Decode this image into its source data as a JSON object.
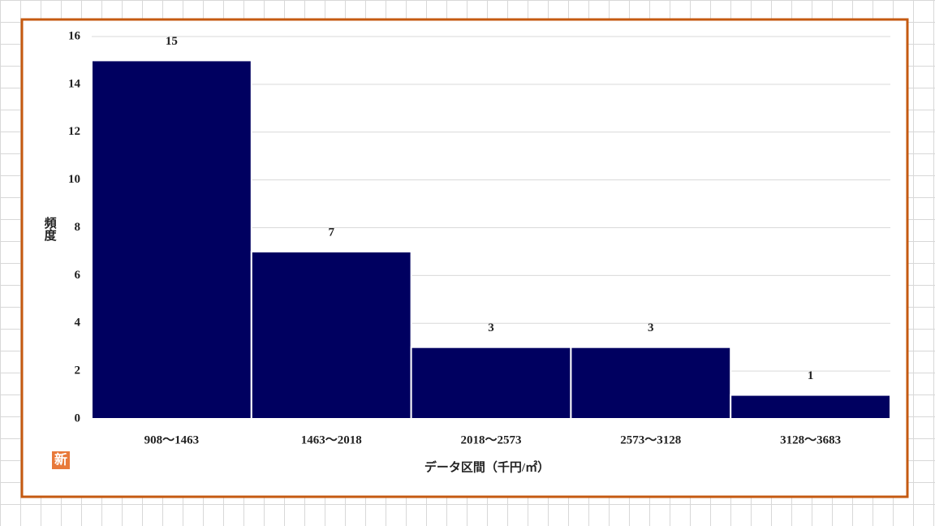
{
  "chart_data": {
    "type": "bar",
    "categories": [
      "908～1463",
      "1463～2018",
      "2018～2573",
      "2573～3128",
      "3128～3683"
    ],
    "values": [
      15,
      7,
      3,
      3,
      1
    ],
    "color": "#000060",
    "x_label": "データ区間（千円/㎡）",
    "y_label": "頻度",
    "ylim": [
      0,
      16
    ],
    "yticks": [
      0,
      2,
      4,
      6,
      8,
      10,
      12,
      14,
      16
    ],
    "grid": true,
    "data_labels": true
  },
  "badge": "新"
}
